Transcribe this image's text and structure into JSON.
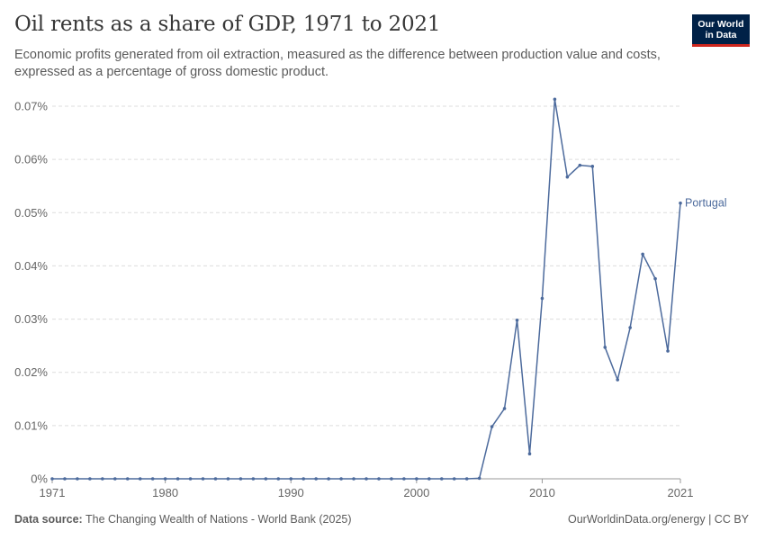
{
  "header": {
    "title": "Oil rents as a share of GDP, 1971 to 2021",
    "subtitle": "Economic profits generated from oil extraction, measured as the difference between production value and costs, expressed as a percentage of gross domestic product.",
    "logo_line1": "Our World",
    "logo_line2": "in Data"
  },
  "footer": {
    "source_label": "Data source:",
    "source_text": "The Changing Wealth of Nations - World Bank (2025)",
    "right_text": "OurWorldinData.org/energy | CC BY"
  },
  "colors": {
    "series": "#4c6a9c",
    "grid": "#dddddd",
    "logo_bg": "#002147",
    "logo_accent": "#ce261e"
  },
  "chart_data": {
    "type": "line",
    "title": "Oil rents as a share of GDP, 1971 to 2021",
    "xlabel": "",
    "ylabel": "",
    "xlim": [
      1971,
      2021
    ],
    "ylim": [
      0,
      0.07
    ],
    "y_ticks": [
      0,
      0.01,
      0.02,
      0.03,
      0.04,
      0.05,
      0.06,
      0.07
    ],
    "y_tick_labels": [
      "0%",
      "0.01%",
      "0.02%",
      "0.03%",
      "0.04%",
      "0.05%",
      "0.06%",
      "0.07%"
    ],
    "x_ticks": [
      1971,
      1980,
      1990,
      2000,
      2010,
      2021
    ],
    "x_tick_labels": [
      "1971",
      "1980",
      "1990",
      "2000",
      "2010",
      "2021"
    ],
    "grid": true,
    "series": [
      {
        "name": "Portugal",
        "x": [
          1971,
          1972,
          1973,
          1974,
          1975,
          1976,
          1977,
          1978,
          1979,
          1980,
          1981,
          1982,
          1983,
          1984,
          1985,
          1986,
          1987,
          1988,
          1989,
          1990,
          1991,
          1992,
          1993,
          1994,
          1995,
          1996,
          1997,
          1998,
          1999,
          2000,
          2001,
          2002,
          2003,
          2004,
          2005,
          2006,
          2007,
          2008,
          2009,
          2010,
          2011,
          2012,
          2013,
          2014,
          2015,
          2016,
          2017,
          2018,
          2019,
          2020,
          2021
        ],
        "values": [
          0,
          0,
          0,
          0,
          0,
          0,
          0,
          0,
          0,
          0,
          0,
          0,
          0,
          0,
          0,
          0,
          0,
          0,
          0,
          0,
          0,
          0,
          0,
          0,
          0,
          0,
          0,
          0,
          0,
          0,
          0,
          0,
          0,
          0,
          0.0001,
          0.0098,
          0.0132,
          0.0298,
          0.0047,
          0.0339,
          0.0713,
          0.0567,
          0.0589,
          0.0587,
          0.0247,
          0.0186,
          0.0284,
          0.0422,
          0.0376,
          0.024,
          0.0518
        ]
      }
    ]
  }
}
